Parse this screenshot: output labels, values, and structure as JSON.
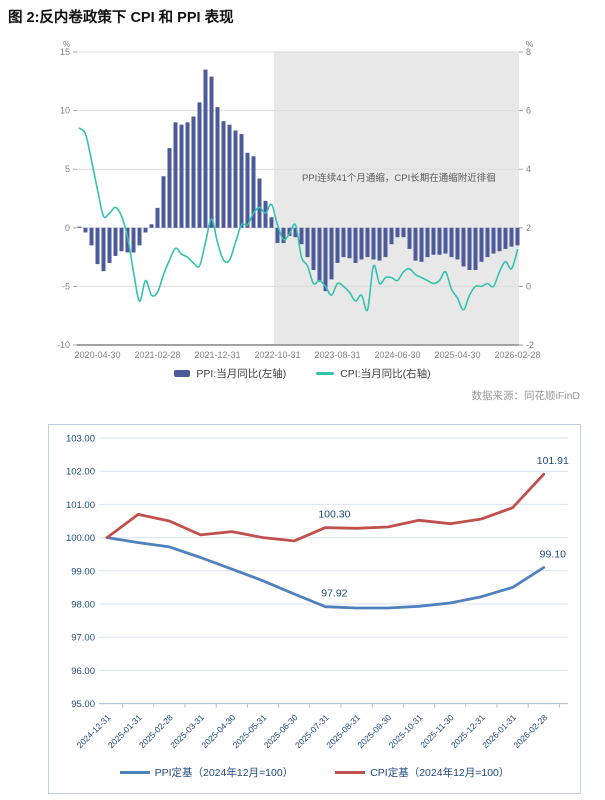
{
  "title": "图 2:反内卷政策下 CPI 和 PPI 表现",
  "source": "数据来源：同花顺iFinD",
  "colors": {
    "bar": "#4c5a99",
    "teal": "#33c2ae",
    "shade": "#e8e8e8",
    "grid_top": "#dcdcdc",
    "axis_gray": "#a3a3a3",
    "tick_text": "#808080",
    "annotation_text": "#595959",
    "blue": "#4f81bd",
    "red": "#c0504d",
    "navy": "#1f497d",
    "grid_bottom": "#d9e2f0",
    "axis_bottom": "#aabdd6"
  },
  "chart_data": [
    {
      "type": "bar+line",
      "description": "PPI and CPI year-over-year, monthly 2020-01 to 2026-02",
      "left_axis": {
        "unit": "%",
        "ticks": [
          15,
          10,
          5,
          0,
          -5,
          -10
        ],
        "range": [
          -10,
          15
        ]
      },
      "right_axis": {
        "unit": "%",
        "ticks": [
          8,
          6,
          4,
          2,
          0,
          -2
        ],
        "range": [
          -2,
          8
        ]
      },
      "x_labels": [
        "2020-04-30",
        "2021-02-28",
        "2021-12-31",
        "2022-10-31",
        "2023-08-31",
        "2024-06-30",
        "2025-04-30",
        "2026-02-28"
      ],
      "x_label_month_indices": [
        3,
        13,
        23,
        33,
        43,
        53,
        63,
        73
      ],
      "annotation": "PPI连续41个月通缩，CPI长期在通缩附近徘徊",
      "shaded_from_index": 33,
      "legend_position": "bottom-center",
      "grid": true,
      "series": [
        {
          "name": "PPI:当月同比(左轴)",
          "type": "bar",
          "axis": "left",
          "values": [
            0.1,
            -0.4,
            -1.5,
            -3.1,
            -3.7,
            -3.0,
            -2.4,
            -2.0,
            -2.1,
            -2.1,
            -1.5,
            -0.4,
            0.3,
            1.7,
            4.4,
            6.8,
            9.0,
            8.8,
            9.0,
            9.5,
            10.7,
            13.5,
            12.9,
            10.3,
            9.1,
            8.8,
            8.3,
            8.0,
            6.4,
            6.1,
            4.2,
            2.3,
            0.9,
            -1.3,
            -1.3,
            -0.7,
            -0.8,
            -1.4,
            -2.5,
            -3.6,
            -4.6,
            -5.4,
            -4.4,
            -3.0,
            -2.5,
            -2.6,
            -3.0,
            -2.7,
            -2.5,
            -2.7,
            -2.8,
            -2.5,
            -1.4,
            -0.8,
            -0.8,
            -1.8,
            -2.8,
            -2.9,
            -2.5,
            -2.3,
            -2.3,
            -2.2,
            -2.5,
            -2.7,
            -3.3,
            -3.6,
            -3.6,
            -2.9,
            -2.5,
            -2.2,
            -2.0,
            -1.8,
            -1.6,
            -1.5
          ]
        },
        {
          "name": "CPI:当月同比(右轴)",
          "type": "line",
          "axis": "right",
          "values": [
            5.4,
            5.2,
            4.3,
            3.3,
            2.4,
            2.5,
            2.7,
            2.4,
            1.7,
            0.5,
            -0.5,
            0.2,
            -0.3,
            -0.2,
            0.4,
            0.9,
            1.3,
            1.1,
            1.0,
            0.8,
            0.7,
            1.5,
            2.3,
            1.5,
            0.9,
            0.9,
            1.5,
            2.1,
            2.1,
            2.5,
            2.7,
            2.5,
            2.8,
            2.1,
            1.6,
            1.8,
            2.1,
            1.0,
            0.7,
            0.1,
            0.2,
            0.0,
            -0.3,
            0.1,
            0.0,
            -0.2,
            -0.5,
            -0.3,
            -0.8,
            0.7,
            0.1,
            0.3,
            0.3,
            0.2,
            0.5,
            0.6,
            0.4,
            0.3,
            0.2,
            0.1,
            0.2,
            0.5,
            -0.1,
            -0.4,
            -0.8,
            -0.3,
            0.0,
            0.0,
            0.1,
            0.0,
            0.5,
            0.85,
            0.6,
            1.25
          ]
        }
      ]
    },
    {
      "type": "line",
      "description": "PPI and CPI fixed-base index, Dec 2024 = 100",
      "ylim": [
        95,
        103
      ],
      "yticks": [
        "103.00",
        "102.00",
        "101.00",
        "100.00",
        "99.00",
        "98.00",
        "97.00",
        "96.00",
        "95.00"
      ],
      "grid": true,
      "legend_position": "bottom-center",
      "categories": [
        "2024-12-31",
        "2025-01-31",
        "2025-02-28",
        "2025-03-31",
        "2025-04-30",
        "2025-05-31",
        "2025-06-30",
        "2025-07-31",
        "2025-08-31",
        "2025-09-30",
        "2025-10-31",
        "2025-11-30",
        "2025-12-31",
        "2026-01-31",
        "2026-02-28"
      ],
      "series": [
        {
          "name": "PPI定基（2024年12月=100）",
          "values": [
            100.0,
            99.85,
            99.72,
            99.4,
            99.05,
            98.7,
            98.3,
            97.92,
            97.88,
            97.88,
            97.93,
            98.03,
            98.22,
            98.5,
            99.1
          ]
        },
        {
          "name": "CPI定基（2024年12月=100）",
          "values": [
            100.0,
            100.7,
            100.5,
            100.08,
            100.18,
            100.0,
            99.9,
            100.3,
            100.28,
            100.32,
            100.52,
            100.42,
            100.56,
            100.9,
            101.91
          ]
        }
      ],
      "data_labels": [
        {
          "series": 0,
          "index": 7,
          "text": "97.92"
        },
        {
          "series": 0,
          "index": 14,
          "text": "99.10"
        },
        {
          "series": 1,
          "index": 7,
          "text": "100.30"
        },
        {
          "series": 1,
          "index": 14,
          "text": "101.91"
        }
      ]
    }
  ]
}
